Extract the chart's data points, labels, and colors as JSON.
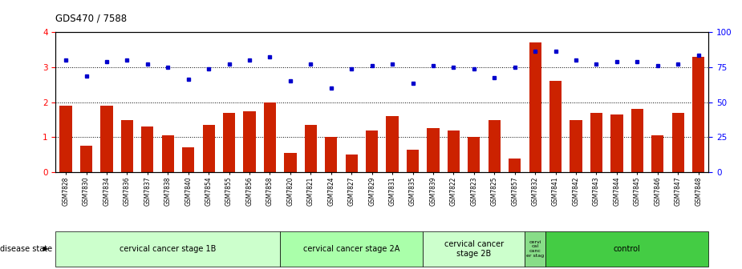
{
  "title": "GDS470 / 7588",
  "samples": [
    "GSM7828",
    "GSM7830",
    "GSM7834",
    "GSM7836",
    "GSM7837",
    "GSM7838",
    "GSM7840",
    "GSM7854",
    "GSM7855",
    "GSM7856",
    "GSM7858",
    "GSM7820",
    "GSM7821",
    "GSM7824",
    "GSM7827",
    "GSM7829",
    "GSM7831",
    "GSM7835",
    "GSM7839",
    "GSM7822",
    "GSM7823",
    "GSM7825",
    "GSM7857",
    "GSM7832",
    "GSM7841",
    "GSM7842",
    "GSM7843",
    "GSM7844",
    "GSM7845",
    "GSM7846",
    "GSM7847",
    "GSM7848"
  ],
  "counts": [
    1.9,
    0.75,
    1.9,
    1.5,
    1.3,
    1.05,
    0.7,
    1.35,
    1.7,
    1.75,
    2.0,
    0.55,
    1.35,
    1.0,
    0.5,
    1.2,
    1.6,
    0.65,
    1.25,
    1.2,
    1.0,
    1.5,
    0.4,
    3.7,
    2.6,
    1.5,
    1.7,
    1.65,
    1.8,
    1.05,
    1.7,
    3.3
  ],
  "percentiles": [
    3.2,
    2.75,
    3.15,
    3.2,
    3.1,
    3.0,
    2.65,
    2.95,
    3.1,
    3.2,
    3.3,
    2.6,
    3.1,
    2.4,
    2.95,
    3.05,
    3.1,
    2.55,
    3.05,
    3.0,
    2.95,
    2.7,
    3.0,
    3.45,
    3.45,
    3.2,
    3.1,
    3.15,
    3.15,
    3.05,
    3.1,
    3.35
  ],
  "bar_color": "#cc2200",
  "dot_color": "#0000cc",
  "ylim_left": [
    0,
    4
  ],
  "ylim_right": [
    0,
    100
  ],
  "yticks_left": [
    0,
    1,
    2,
    3,
    4
  ],
  "yticks_right": [
    0,
    25,
    50,
    75,
    100
  ],
  "groups": [
    {
      "label": "cervical cancer stage 1B",
      "start": 0,
      "end": 10,
      "color": "#ccffcc"
    },
    {
      "label": "cervical cancer stage 2A",
      "start": 11,
      "end": 17,
      "color": "#aaffaa"
    },
    {
      "label": "cervical cancer\nstage 2B",
      "start": 18,
      "end": 22,
      "color": "#ccffcc"
    },
    {
      "label": "cervi\ncal\ncanc\ner stag",
      "start": 23,
      "end": 23,
      "color": "#88dd88"
    },
    {
      "label": "control",
      "start": 24,
      "end": 31,
      "color": "#44cc44"
    }
  ],
  "disease_state_label": "disease state",
  "bg_color": "#ffffff"
}
